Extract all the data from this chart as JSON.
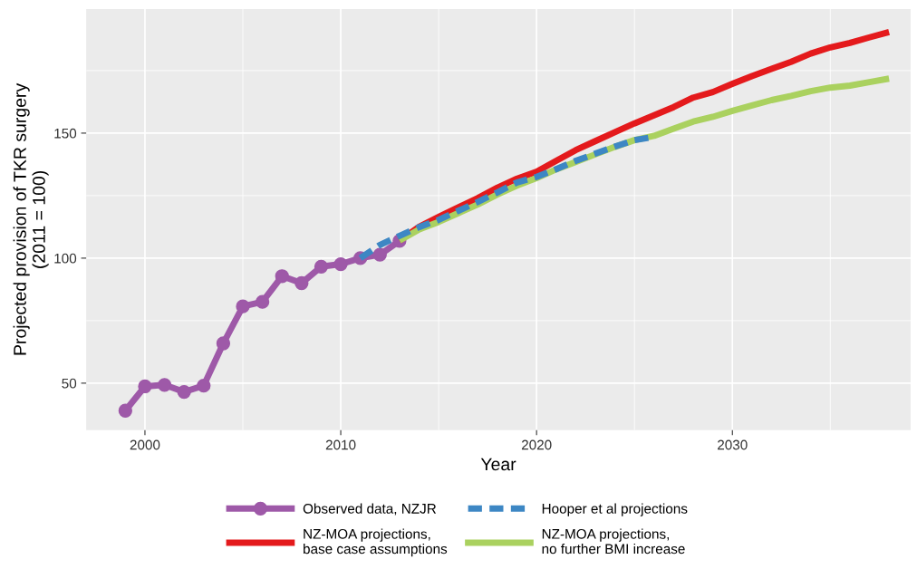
{
  "chart_data": {
    "type": "line",
    "xlabel": "Year",
    "ylabel": "Projected provision of TKR surgery\n(2011 = 100)",
    "xlim": [
      1997,
      2039.1
    ],
    "ylim": [
      31.2,
      199.6
    ],
    "xticks": [
      2000,
      2010,
      2020,
      2030
    ],
    "yticks": [
      50,
      100,
      150
    ],
    "grid": true,
    "legend": "bottom",
    "series": [
      {
        "name": "Observed data, NZJR",
        "color": "#9e59a8",
        "marker": "circle",
        "line_style": "solid",
        "x": [
          1999,
          2000,
          2001,
          2002,
          2003,
          2004,
          2005,
          2006,
          2007,
          2008,
          2009,
          2010,
          2011,
          2012,
          2013
        ],
        "values": [
          39.0,
          48.7,
          49.3,
          46.5,
          49.0,
          65.9,
          80.7,
          82.5,
          92.8,
          90.0,
          96.6,
          97.6,
          100,
          101.4,
          106.9
        ]
      },
      {
        "name": "Hooper et al projections",
        "color": "#3d87c4",
        "line_style": "dashed",
        "x": [
          2011,
          2012,
          2013,
          2014,
          2015,
          2016,
          2017,
          2018,
          2019,
          2020,
          2021,
          2022,
          2023,
          2024,
          2025,
          2026
        ],
        "values": [
          100,
          105.3,
          108.9,
          112.4,
          115.3,
          118.9,
          122.5,
          126.3,
          130.3,
          132.5,
          135.6,
          138.9,
          141.8,
          144.6,
          147.2,
          148.5
        ]
      },
      {
        "name": "NZ-MOA projections,\nbase case assumptions",
        "color": "#e41a1c",
        "line_style": "solid",
        "x": [
          2013,
          2014,
          2015,
          2016,
          2017,
          2018,
          2019,
          2020,
          2021,
          2022,
          2023,
          2024,
          2025,
          2026,
          2027,
          2028,
          2029,
          2030,
          2031,
          2032,
          2033,
          2034,
          2035,
          2036,
          2037,
          2038
        ],
        "values": [
          107,
          112.5,
          116.5,
          120.3,
          124,
          128.2,
          131.8,
          134.6,
          138.9,
          143.2,
          146.8,
          150.4,
          153.9,
          157.1,
          160.4,
          164.2,
          166.4,
          169.7,
          172.8,
          175.7,
          178.5,
          181.8,
          184.3,
          186.1,
          188.3,
          190.4
        ]
      },
      {
        "name": "NZ-MOA projections,\nno further BMI increase",
        "color": "#aad15f",
        "line_style": "solid",
        "x": [
          2013,
          2014,
          2015,
          2016,
          2017,
          2018,
          2019,
          2020,
          2021,
          2022,
          2023,
          2024,
          2025,
          2026,
          2027,
          2028,
          2029,
          2030,
          2031,
          2032,
          2033,
          2034,
          2035,
          2036,
          2037,
          2038
        ],
        "values": [
          107,
          111.5,
          114.5,
          118,
          121.5,
          125.5,
          129,
          132,
          135.5,
          138.5,
          141.5,
          144.5,
          147.2,
          148.9,
          151.8,
          154.6,
          156.5,
          158.9,
          161.1,
          163.2,
          164.9,
          166.8,
          168.2,
          169,
          170.4,
          171.8
        ]
      }
    ]
  }
}
